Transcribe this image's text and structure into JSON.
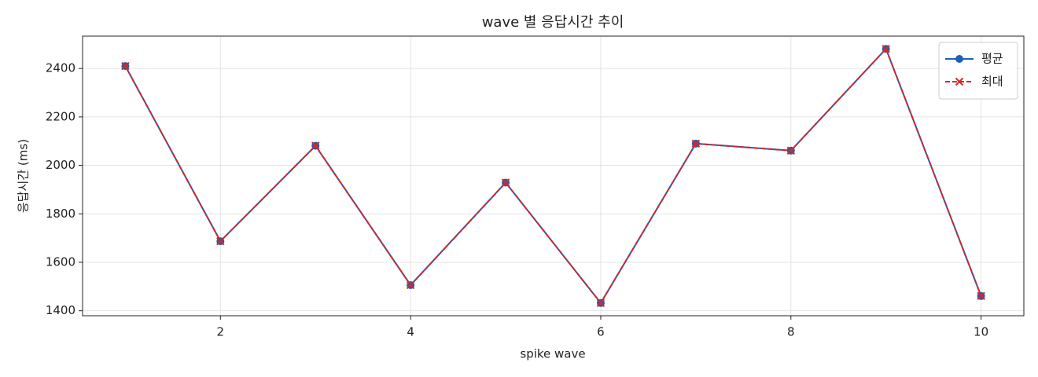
{
  "chart_data": {
    "type": "line",
    "title": "wave 별 응답시간 추이",
    "x_label": "spike wave",
    "y_label": "응답시간 (ms)",
    "x": [
      1,
      2,
      3,
      4,
      5,
      6,
      7,
      8,
      9,
      10
    ],
    "series": [
      {
        "name": "평균",
        "color": "#1f5fb4",
        "marker": "o",
        "linestyle": "solid",
        "values": [
          2410,
          1687,
          2081,
          1506,
          1929,
          1432,
          2090,
          2061,
          2481,
          1461
        ]
      },
      {
        "name": "최대",
        "color": "#d62728",
        "marker": "x",
        "linestyle": "dashed",
        "values": [
          2410,
          1687,
          2081,
          1506,
          1929,
          1432,
          2090,
          2061,
          2481,
          1461
        ]
      }
    ],
    "xlim": [
      0.55,
      10.45
    ],
    "ylim": [
      1379.5,
      2533.5
    ],
    "xticks": [
      2,
      4,
      6,
      8,
      10
    ],
    "yticks": [
      1400,
      1600,
      1800,
      2000,
      2200,
      2400
    ],
    "grid": true,
    "legend": "upper right"
  }
}
